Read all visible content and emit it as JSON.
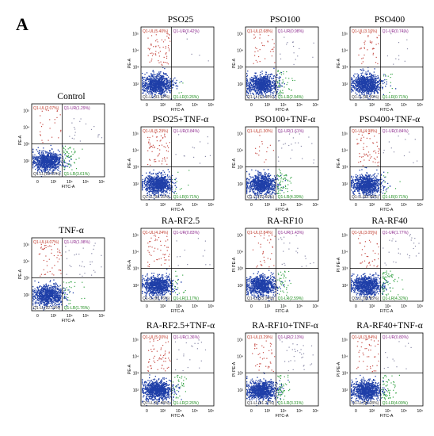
{
  "figure": {
    "panel_letter": "A"
  },
  "colors": {
    "frame": "#000000",
    "quad_ul": "#c0392b",
    "quad_ur": "#8e2a8e",
    "quad_lr": "#1a8c1a",
    "quad_ll": "#333333",
    "dots_main": "#1f3fa8",
    "dots_red": "#c8504a",
    "dots_green": "#3aa64a",
    "dots_grey": "#8a8aa8"
  },
  "chart_data": [
    {
      "type": "scatter",
      "title": "PSO25",
      "xlabel": "FITC-A",
      "ylabel": "PE-A",
      "quadrants": {
        "UL": "Q1-UL(5.40%)",
        "UR": "Q1-UR(0.42%)",
        "LL": "Q1-LL(93.92%)",
        "LR": "Q1-LR(0.26%)"
      },
      "ul": 5.4,
      "ur": 0.42,
      "ll": 93.92,
      "lr": 0.26
    },
    {
      "type": "scatter",
      "title": "PSO100",
      "xlabel": "FITC-A",
      "ylabel": "PE-A",
      "quadrants": {
        "UL": "Q1-UL(2.68%)",
        "UR": "Q1-UR(0.98%)",
        "LL": "Q1-LL(93.40%)",
        "LR": "Q1-LR(2.94%)"
      },
      "ul": 2.68,
      "ur": 0.98,
      "ll": 93.4,
      "lr": 2.94
    },
    {
      "type": "scatter",
      "title": "PSO400",
      "xlabel": "FITC-A",
      "ylabel": "PE-A",
      "quadrants": {
        "UL": "Q1-UL(3.16%)",
        "UR": "Q1-UR(0.74%)",
        "LL": "Q1-LL(95.39%)",
        "LR": "Q1-LR(0.71%)"
      },
      "ul": 3.16,
      "ur": 0.74,
      "ll": 95.39,
      "lr": 0.71
    },
    {
      "type": "scatter",
      "title": "Control",
      "xlabel": "FITC-A",
      "ylabel": "PE-A",
      "quadrants": {
        "UL": "Q1-UL(2.07%)",
        "UR": "Q1-UR(1.29%)",
        "LL": "Q1-LL(93.03%)",
        "LR": "Q1-LR(3.61%)"
      },
      "ul": 2.07,
      "ur": 1.29,
      "ll": 93.03,
      "lr": 3.61
    },
    {
      "type": "scatter",
      "title": "PSO25+TNF-α",
      "xlabel": "FITC-A",
      "ylabel": "PE-A",
      "quadrants": {
        "UL": "Q1-UL(5.29%)",
        "UR": "Q1-UR(0.84%)",
        "LL": "Q1-LL(93.16%)",
        "LR": "Q1-LR(0.71%)"
      },
      "ul": 5.29,
      "ur": 0.84,
      "ll": 93.16,
      "lr": 0.71
    },
    {
      "type": "scatter",
      "title": "PSO100+TNF-α",
      "xlabel": "FITC-A",
      "ylabel": "PE-A",
      "quadrants": {
        "UL": "Q1-UL(1.30%)",
        "UR": "Q1-UR(1.61%)",
        "LL": "Q1-LL(92.60%)",
        "LR": "Q1-LR(4.39%)"
      },
      "ul": 1.3,
      "ur": 1.61,
      "ll": 92.6,
      "lr": 4.39
    },
    {
      "type": "scatter",
      "title": "PSO400+TNF-α",
      "xlabel": "FITC-A",
      "ylabel": "PE-A",
      "quadrants": {
        "UL": "Q1-UL(4.98%)",
        "UR": "Q1-UR(0.84%)",
        "LL": "Q1-LL(93.48%)",
        "LR": "Q1-LR(0.71%)"
      },
      "ul": 4.98,
      "ur": 0.84,
      "ll": 93.48,
      "lr": 0.71
    },
    {
      "type": "scatter",
      "title": "TNF-α",
      "xlabel": "FITC-A",
      "ylabel": "PE-A",
      "quadrants": {
        "UL": "Q1-UL(4.07%)",
        "UR": "Q1-UR(1.98%)",
        "LL": "Q1-LL(92.19%)",
        "LR": "Q1-LR(1.76%)"
      },
      "ul": 4.07,
      "ur": 1.98,
      "ll": 92.19,
      "lr": 1.76
    },
    {
      "type": "scatter",
      "title": "RA-RF2.5",
      "xlabel": "FITC-A",
      "ylabel": "PE-A",
      "quadrants": {
        "UL": "Q1-UL(4.24%)",
        "UR": "Q1-UR(0.83%)",
        "LL": "Q1-LL(93.76%)",
        "LR": "Q1-LR(1.17%)"
      },
      "ul": 4.24,
      "ur": 0.83,
      "ll": 93.76,
      "lr": 1.17
    },
    {
      "type": "scatter",
      "title": "RA-RF10",
      "xlabel": "FITC-A",
      "ylabel": "PI PE-A",
      "quadrants": {
        "UL": "Q1-UL(2.84%)",
        "UR": "Q1-UR(1.43%)",
        "LL": "Q1-LL(93.04%)",
        "LR": "Q1-LR(2.59%)"
      },
      "ul": 2.84,
      "ur": 1.43,
      "ll": 93.04,
      "lr": 2.59
    },
    {
      "type": "scatter",
      "title": "RA-RF40",
      "xlabel": "FITC-A",
      "ylabel": "PI PE-A",
      "quadrants": {
        "UL": "Q1-UL(3.05%)",
        "UR": "Q1-UR(1.77%)",
        "LL": "Q1-LL(90.85%)",
        "LR": "Q1-LR(4.32%)"
      },
      "ul": 3.05,
      "ur": 1.77,
      "ll": 90.85,
      "lr": 4.32
    },
    {
      "type": "scatter",
      "title": "RA-RF2.5+TNF-α",
      "xlabel": "FITC-A",
      "ylabel": "PE-A",
      "quadrants": {
        "UL": "Q1-UL(5.00%)",
        "UR": "Q1-UR(1.36%)",
        "LL": "Q1-LL(91.48%)",
        "LR": "Q1-LR(2.26%)"
      },
      "ul": 5.0,
      "ur": 1.36,
      "ll": 91.48,
      "lr": 2.26
    },
    {
      "type": "scatter",
      "title": "RA-RF10+TNF-α",
      "xlabel": "FITC-A",
      "ylabel": "PI PE-A",
      "quadrants": {
        "UL": "Q1-UL(3.29%)",
        "UR": "Q1-UR(2.13%)",
        "LL": "Q1-LL(91.27%)",
        "LR": "Q1-LR(3.31%)"
      },
      "ul": 3.29,
      "ur": 2.13,
      "ll": 91.27,
      "lr": 3.31
    },
    {
      "type": "scatter",
      "title": "RA-RF40+TNF-α",
      "xlabel": "FITC-A",
      "ylabel": "PI PE-A",
      "quadrants": {
        "UL": "Q1-UL(3.84%)",
        "UR": "Q1-UR(0.80%)",
        "LL": "Q1-LL(90.28%)",
        "LR": "Q1-LR(4.09%)"
      },
      "ul": 3.84,
      "ur": 0.8,
      "ll": 90.28,
      "lr": 4.09
    }
  ],
  "axis_ticks": {
    "x": [
      "0",
      "10³",
      "10⁴",
      "10⁵",
      "10⁶"
    ],
    "y": [
      "10²",
      "10³",
      "10⁴",
      "10⁵"
    ]
  }
}
